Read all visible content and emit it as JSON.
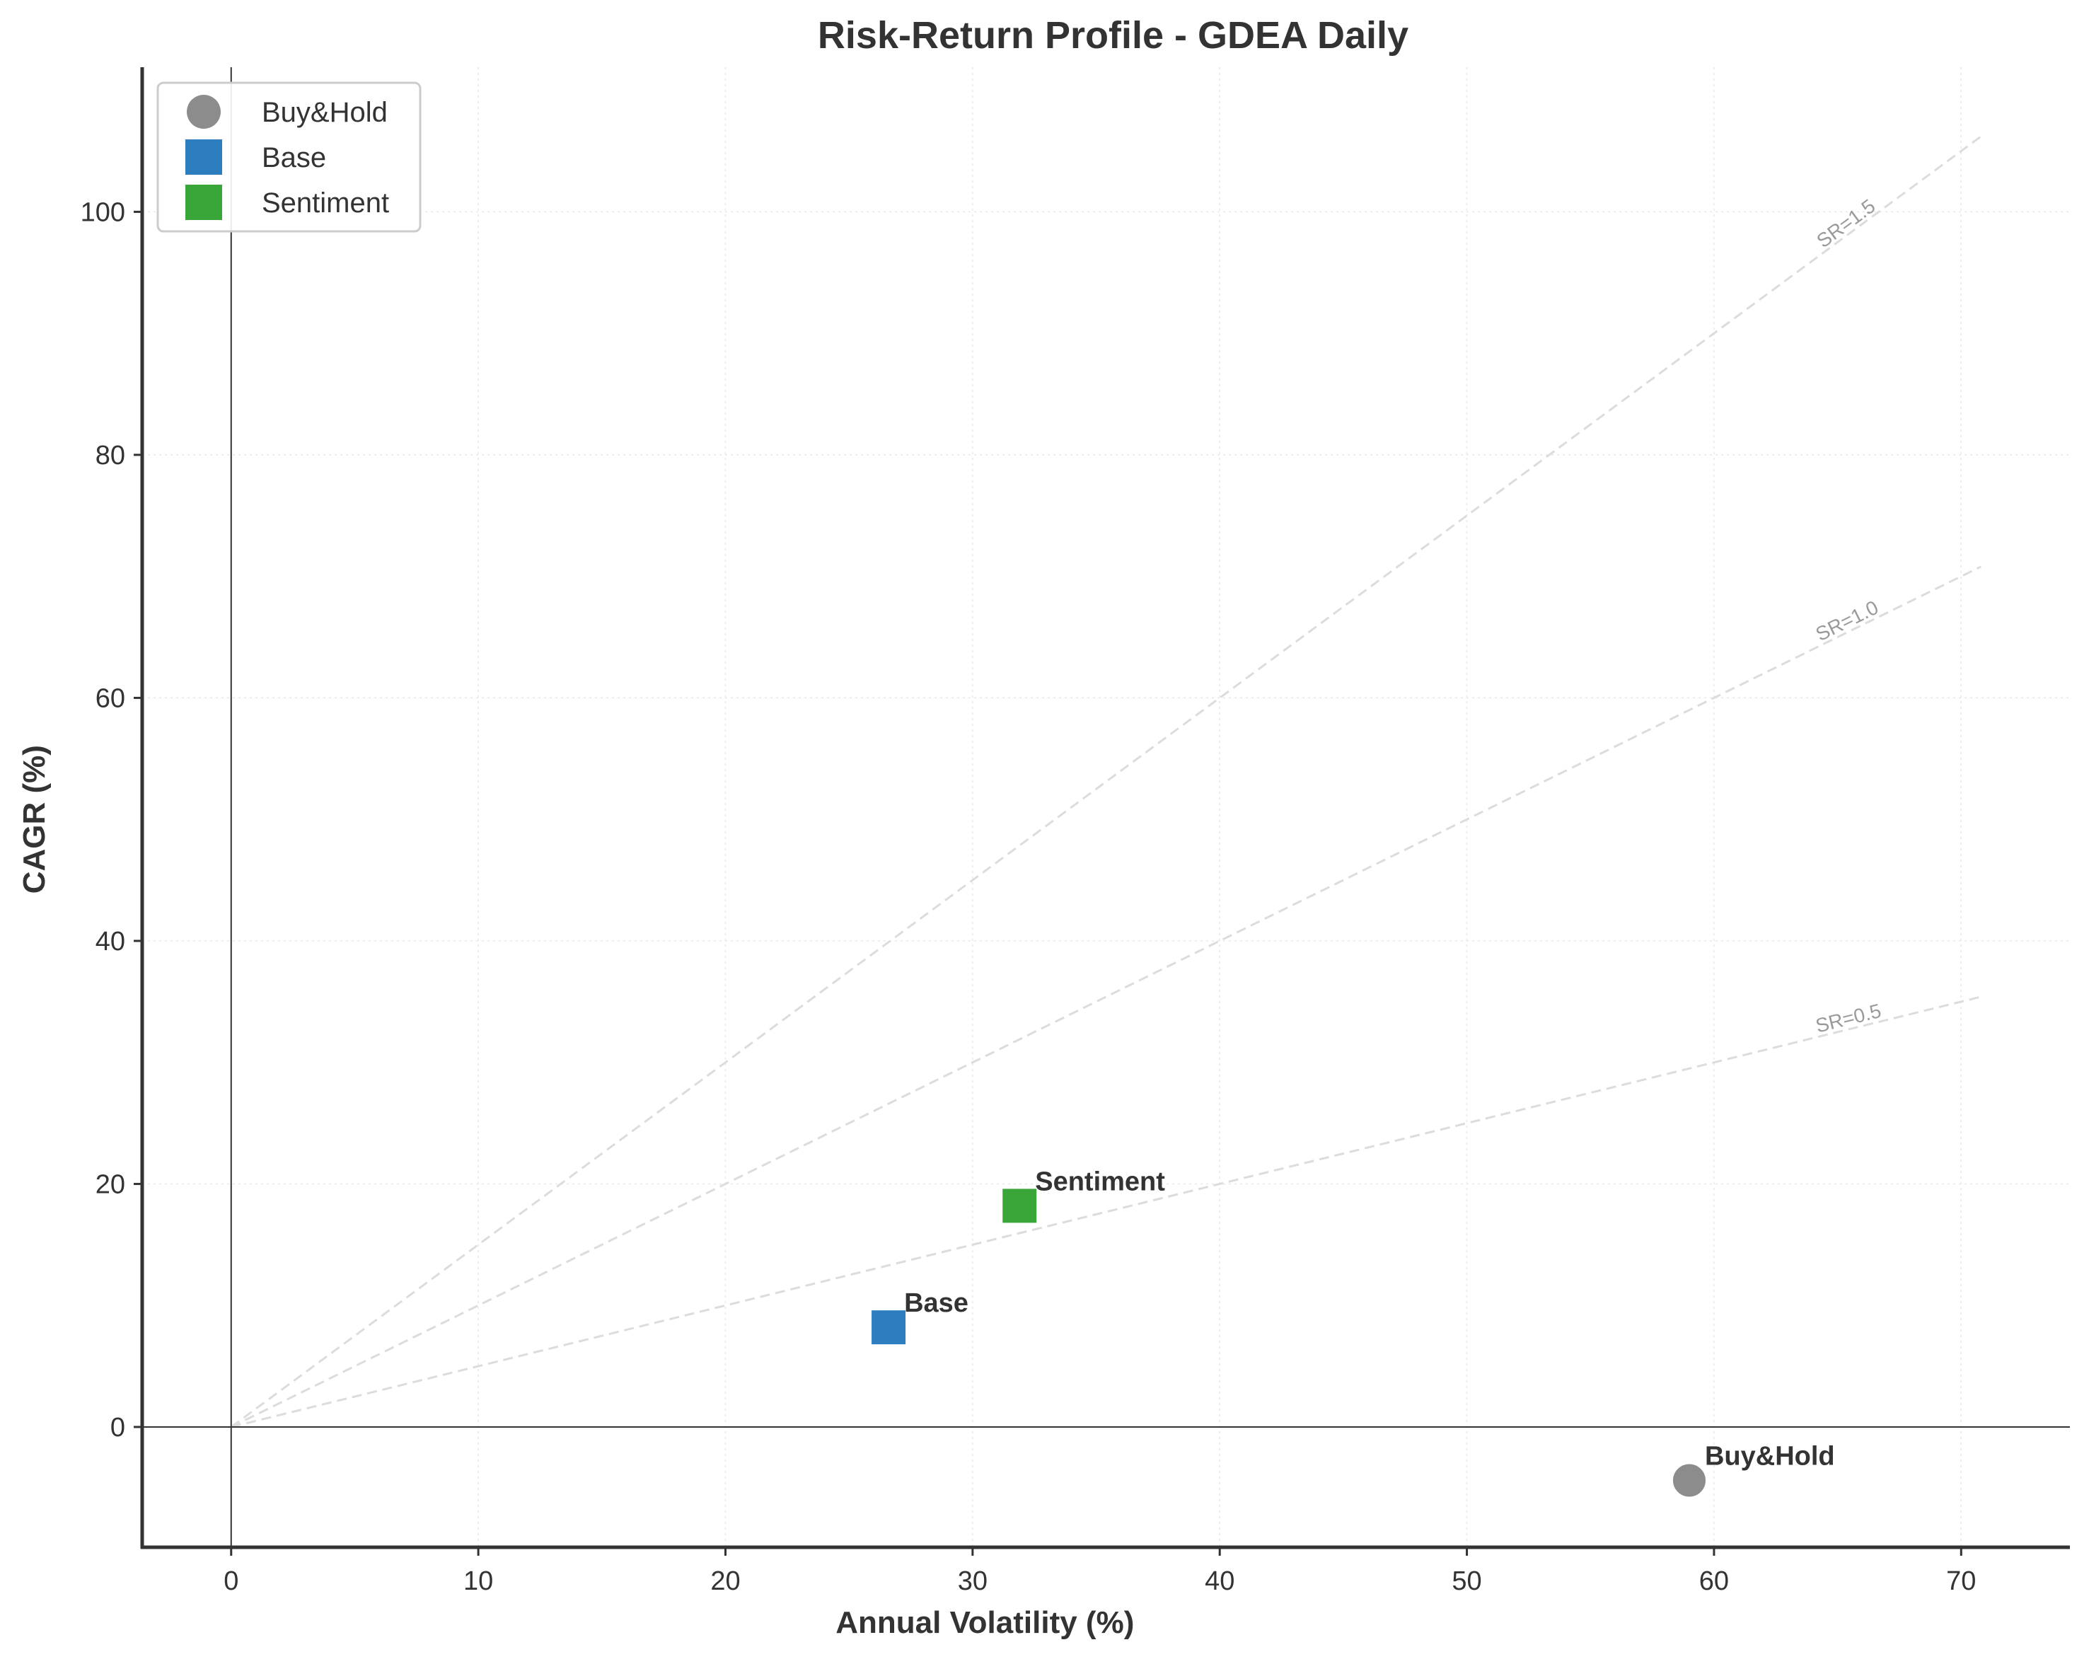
{
  "chart_data": {
    "type": "scatter",
    "title": "Risk-Return Profile - GDEA Daily",
    "xlabel": "Annual Volatility (%)",
    "ylabel": "CAGR (%)",
    "xlim": [
      -3.6,
      74.4
    ],
    "ylim": [
      -9.9,
      111.9
    ],
    "xticks": [
      0,
      10,
      20,
      30,
      40,
      50,
      60,
      70
    ],
    "yticks": [
      0,
      20,
      40,
      60,
      80,
      100
    ],
    "grid": true,
    "legend_position": "upper-left",
    "series": [
      {
        "name": "Buy&Hold",
        "marker": "circle",
        "color": "#8c8c8c",
        "x": 59.0,
        "y": -4.4,
        "label": "Buy&Hold"
      },
      {
        "name": "Base",
        "marker": "square",
        "color": "#2e7ebf",
        "x": 26.6,
        "y": 8.2,
        "label": "Base"
      },
      {
        "name": "Sentiment",
        "marker": "square",
        "color": "#3aa63a",
        "x": 31.9,
        "y": 18.2,
        "label": "Sentiment"
      }
    ],
    "sharpe_lines": [
      {
        "slope": 1.5,
        "label": "SR=1.5",
        "x_end": 70.8
      },
      {
        "slope": 1.0,
        "label": "SR=1.0",
        "x_end": 70.8
      },
      {
        "slope": 0.5,
        "label": "SR=0.5",
        "x_end": 70.8
      }
    ],
    "reference_lines": {
      "x": 0,
      "y": 0
    }
  }
}
